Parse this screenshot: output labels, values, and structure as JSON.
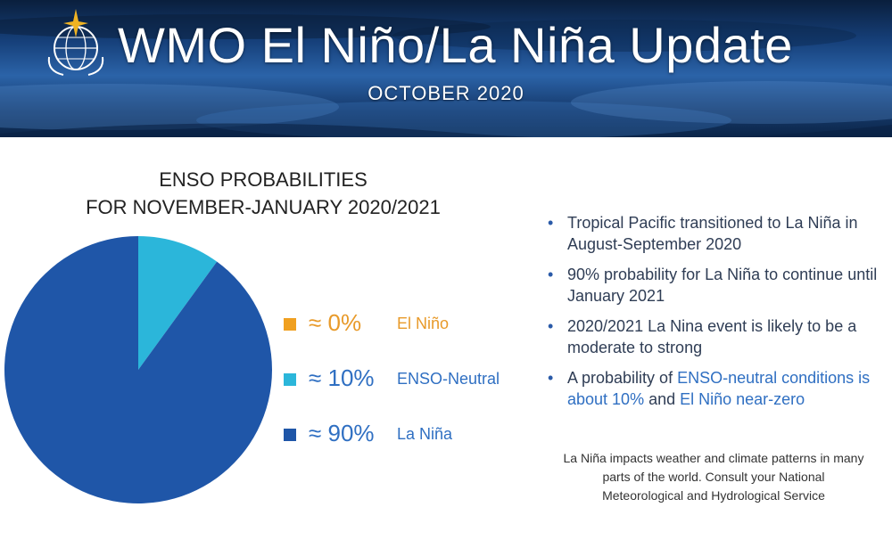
{
  "header": {
    "title": "WMO El Niño/La Niña Update",
    "subtitle": "OCTOBER 2020"
  },
  "chart_title": {
    "line1": "ENSO PROBABILITIES",
    "line2": "FOR NOVEMBER-JANUARY 2020/2021"
  },
  "chart_data": {
    "type": "pie",
    "title": "ENSO PROBABILITIES FOR NOVEMBER-JANUARY 2020/2021",
    "categories": [
      "El Niño",
      "ENSO-Neutral",
      "La Niña"
    ],
    "values": [
      0,
      10,
      90
    ],
    "value_labels": [
      "≈ 0%",
      "≈ 10%",
      "≈ 90%"
    ],
    "colors": [
      "#f0a020",
      "#2bb6da",
      "#1f56a8"
    ],
    "text_colors": [
      "#e89a2a",
      "#2f6fc2",
      "#2f6fc2"
    ],
    "legend_placement": "right"
  },
  "bullets": [
    {
      "parts": [
        {
          "text": "Tropical Pacific transitioned to La Niña in August-September 2020",
          "hl": false
        }
      ]
    },
    {
      "parts": [
        {
          "text": "90% probability for La Niña to continue until January 2021",
          "hl": false
        }
      ]
    },
    {
      "parts": [
        {
          "text": "2020/2021 La Nina event is likely to be a moderate to strong",
          "hl": false
        }
      ]
    },
    {
      "parts": [
        {
          "text": "A probability of ",
          "hl": false
        },
        {
          "text": "ENSO-neutral conditions is about 10%",
          "hl": true
        },
        {
          "text": " and ",
          "hl": false
        },
        {
          "text": "El Niño near-zero",
          "hl": true
        }
      ]
    }
  ],
  "note": {
    "line1": "La Niña impacts weather and climate patterns in many",
    "line2": "parts of the world. Consult your National",
    "line3": "Meteorological and Hydrological Service"
  }
}
